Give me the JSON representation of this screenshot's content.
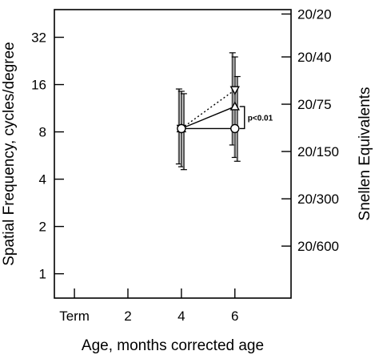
{
  "chart_data": {
    "type": "line",
    "xlabel": "Age, months corrected age",
    "ylabel": "Spatial Frequency, cycles/degree",
    "y2label": "Snellen Equivalents",
    "y_scale": "log2",
    "xlim": [
      -0.75,
      8.1
    ],
    "ylim": [
      0.7,
      48
    ],
    "x_ticks": [
      {
        "value": 0,
        "label": "Term"
      },
      {
        "value": 2,
        "label": "2"
      },
      {
        "value": 4,
        "label": "4"
      },
      {
        "value": 6,
        "label": "6"
      }
    ],
    "y_ticks": [
      {
        "value": 1,
        "label": "1"
      },
      {
        "value": 2,
        "label": "2"
      },
      {
        "value": 4,
        "label": "4"
      },
      {
        "value": 8,
        "label": "8"
      },
      {
        "value": 16,
        "label": "16"
      },
      {
        "value": 32,
        "label": "32"
      }
    ],
    "y2_ticks": [
      {
        "value": 1.5,
        "label": "20/600"
      },
      {
        "value": 3,
        "label": "20/300"
      },
      {
        "value": 6,
        "label": "20/150"
      },
      {
        "value": 12,
        "label": "20/75"
      },
      {
        "value": 24,
        "label": "20/40"
      },
      {
        "value": 45,
        "label": "20/20"
      }
    ],
    "series": [
      {
        "marker": "triangle-down",
        "line": "dotted",
        "x": [
          4.0,
          6.0
        ],
        "y": [
          8.4,
          14.8
        ],
        "err_low": [
          5.0,
          6.6
        ],
        "err_high": [
          15.0,
          25.5
        ]
      },
      {
        "marker": "triangle-up",
        "line": "solid",
        "x": [
          4.0,
          6.0
        ],
        "y": [
          8.4,
          11.6
        ],
        "err_low": [
          4.8,
          5.5
        ],
        "err_high": [
          14.5,
          24.0
        ]
      },
      {
        "marker": "circle",
        "line": "solid",
        "x": [
          4.0,
          6.0
        ],
        "y": [
          8.4,
          8.4
        ],
        "err_low": [
          4.6,
          5.2
        ],
        "err_high": [
          14.0,
          18.0
        ]
      }
    ],
    "annotations": [
      {
        "text": "p<0.01",
        "between_y": [
          8.4,
          11.6
        ]
      }
    ]
  }
}
